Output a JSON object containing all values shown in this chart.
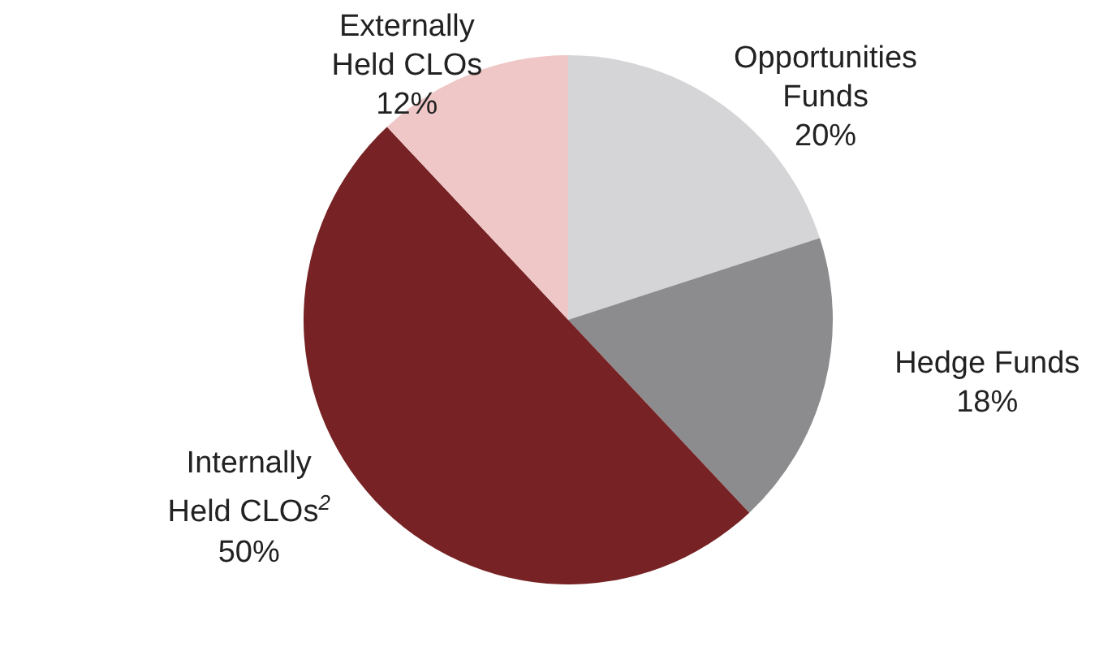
{
  "chart_data": {
    "type": "pie",
    "categories": [
      "Opportunities Funds",
      "Hedge Funds",
      "Internally Held CLOs$^{2}$",
      "Externally Held CLOs"
    ],
    "values": [
      20,
      18,
      50,
      12
    ],
    "colors": [
      "#d5d5d7",
      "#8c8c8e",
      "#772224",
      "#efc7c7"
    ],
    "value_labels": [
      "20%",
      "18%",
      "50%",
      "12%"
    ],
    "legend": false
  }
}
